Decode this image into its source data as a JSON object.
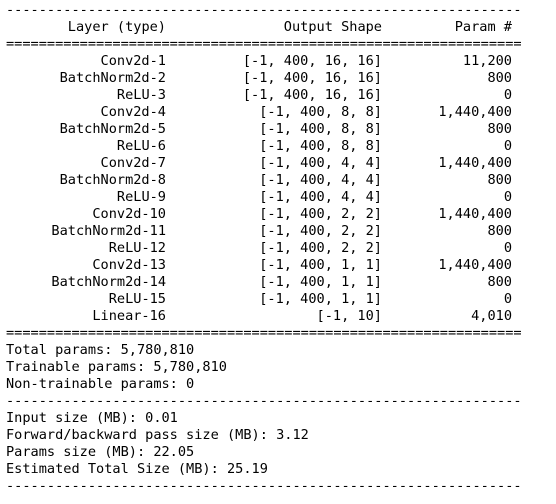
{
  "rules": {
    "dash": "----------------------------------------------------------------",
    "equals": "================================================================"
  },
  "header": {
    "layer": "Layer (type)",
    "shape": "Output Shape",
    "param": "Param #"
  },
  "layers": [
    {
      "name": "Conv2d-1",
      "shape": "[-1, 400, 16, 16]",
      "params": "11,200"
    },
    {
      "name": "BatchNorm2d-2",
      "shape": "[-1, 400, 16, 16]",
      "params": "800"
    },
    {
      "name": "ReLU-3",
      "shape": "[-1, 400, 16, 16]",
      "params": "0"
    },
    {
      "name": "Conv2d-4",
      "shape": "[-1, 400, 8, 8]",
      "params": "1,440,400"
    },
    {
      "name": "BatchNorm2d-5",
      "shape": "[-1, 400, 8, 8]",
      "params": "800"
    },
    {
      "name": "ReLU-6",
      "shape": "[-1, 400, 8, 8]",
      "params": "0"
    },
    {
      "name": "Conv2d-7",
      "shape": "[-1, 400, 4, 4]",
      "params": "1,440,400"
    },
    {
      "name": "BatchNorm2d-8",
      "shape": "[-1, 400, 4, 4]",
      "params": "800"
    },
    {
      "name": "ReLU-9",
      "shape": "[-1, 400, 4, 4]",
      "params": "0"
    },
    {
      "name": "Conv2d-10",
      "shape": "[-1, 400, 2, 2]",
      "params": "1,440,400"
    },
    {
      "name": "BatchNorm2d-11",
      "shape": "[-1, 400, 2, 2]",
      "params": "800"
    },
    {
      "name": "ReLU-12",
      "shape": "[-1, 400, 2, 2]",
      "params": "0"
    },
    {
      "name": "Conv2d-13",
      "shape": "[-1, 400, 1, 1]",
      "params": "1,440,400"
    },
    {
      "name": "BatchNorm2d-14",
      "shape": "[-1, 400, 1, 1]",
      "params": "800"
    },
    {
      "name": "ReLU-15",
      "shape": "[-1, 400, 1, 1]",
      "params": "0"
    },
    {
      "name": "Linear-16",
      "shape": "[-1, 10]",
      "params": "4,010"
    }
  ],
  "params_summary": [
    "Total params: 5,780,810",
    "Trainable params: 5,780,810",
    "Non-trainable params: 0"
  ],
  "size_summary": [
    "Input size (MB): 0.01",
    "Forward/backward pass size (MB): 3.12",
    "Params size (MB): 22.05",
    "Estimated Total Size (MB): 25.19"
  ]
}
